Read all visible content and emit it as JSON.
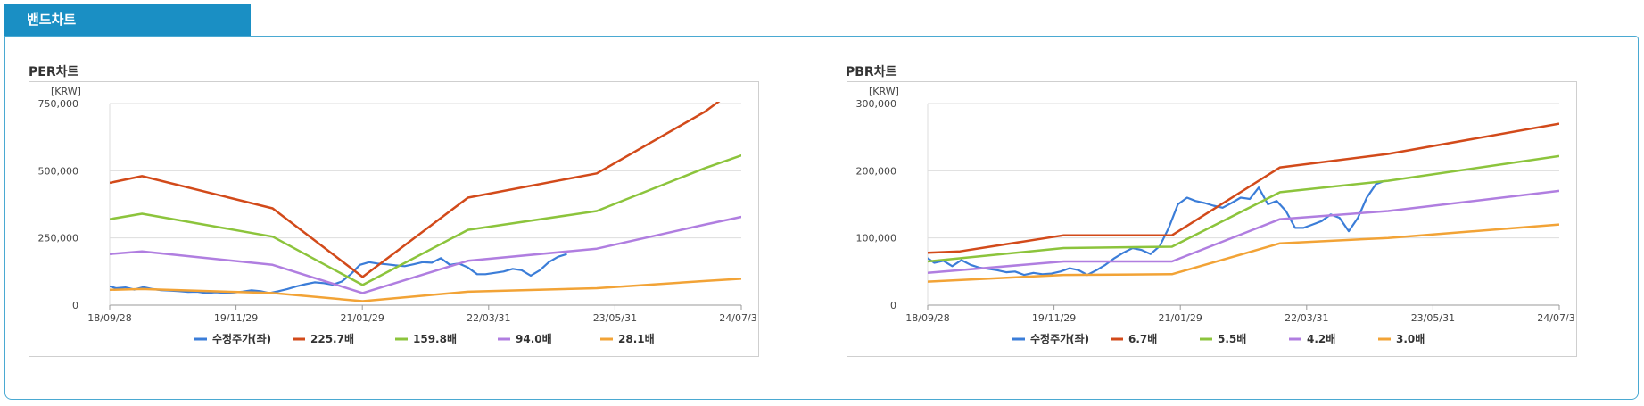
{
  "header": {
    "tab_label": "밴드차트"
  },
  "panels": [
    {
      "title": "PER차트"
    },
    {
      "title": "PBR차트"
    }
  ],
  "colors": {
    "price": "#3b7dd8",
    "band1": "#d24a1a",
    "band2": "#8cc43c",
    "band3": "#b07ee0",
    "band4": "#f2a336",
    "grid": "#dddddd",
    "axis": "#999999",
    "accent": "#1a8fc4"
  },
  "chart_data": [
    {
      "type": "line",
      "title": "PER차트",
      "unit_label": "[KRW]",
      "x_ticks": [
        "18/09/28",
        "19/11/29",
        "21/01/29",
        "22/03/31",
        "23/05/31",
        "24/07/31"
      ],
      "x_range": [
        "2018-09-28",
        "2024-07-31"
      ],
      "y_ticks": [
        "0",
        "250,000",
        "500,000",
        "750,000"
      ],
      "ylim": [
        0,
        750000
      ],
      "legend_position": "bottom",
      "series": [
        {
          "name": "수정주가(좌)",
          "color_key": "price",
          "points": [
            [
              "2018-09-28",
              70000
            ],
            [
              "2018-10-20",
              63000
            ],
            [
              "2018-11-20",
              66000
            ],
            [
              "2018-12-20",
              58000
            ],
            [
              "2019-01-20",
              67000
            ],
            [
              "2019-02-20",
              60000
            ],
            [
              "2019-03-20",
              56000
            ],
            [
              "2019-04-20",
              54000
            ],
            [
              "2019-05-20",
              52000
            ],
            [
              "2019-06-20",
              49000
            ],
            [
              "2019-07-20",
              50000
            ],
            [
              "2019-08-20",
              45000
            ],
            [
              "2019-09-20",
              48000
            ],
            [
              "2019-10-20",
              46000
            ],
            [
              "2019-11-20",
              47000
            ],
            [
              "2019-12-20",
              50000
            ],
            [
              "2020-01-20",
              55000
            ],
            [
              "2020-02-20",
              52000
            ],
            [
              "2020-03-20",
              45000
            ],
            [
              "2020-04-20",
              52000
            ],
            [
              "2020-05-20",
              60000
            ],
            [
              "2020-06-20",
              70000
            ],
            [
              "2020-07-20",
              78000
            ],
            [
              "2020-08-20",
              85000
            ],
            [
              "2020-09-20",
              82000
            ],
            [
              "2020-10-20",
              76000
            ],
            [
              "2020-11-20",
              88000
            ],
            [
              "2020-12-20",
              115000
            ],
            [
              "2021-01-20",
              150000
            ],
            [
              "2021-02-20",
              160000
            ],
            [
              "2021-03-20",
              155000
            ],
            [
              "2021-04-20",
              152000
            ],
            [
              "2021-05-20",
              148000
            ],
            [
              "2021-06-20",
              145000
            ],
            [
              "2021-07-20",
              152000
            ],
            [
              "2021-08-20",
              160000
            ],
            [
              "2021-09-20",
              158000
            ],
            [
              "2021-10-20",
              175000
            ],
            [
              "2021-11-20",
              150000
            ],
            [
              "2021-12-20",
              155000
            ],
            [
              "2022-01-20",
              140000
            ],
            [
              "2022-02-20",
              115000
            ],
            [
              "2022-03-20",
              115000
            ],
            [
              "2022-04-20",
              120000
            ],
            [
              "2022-05-20",
              125000
            ],
            [
              "2022-06-20",
              135000
            ],
            [
              "2022-07-20",
              130000
            ],
            [
              "2022-08-20",
              110000
            ],
            [
              "2022-09-20",
              130000
            ],
            [
              "2022-10-20",
              160000
            ],
            [
              "2022-11-20",
              180000
            ],
            [
              "2022-12-20",
              190000
            ]
          ]
        },
        {
          "name": "225.7배",
          "color_key": "band1",
          "points": [
            [
              "2018-09-28",
              455000
            ],
            [
              "2019-01-15",
              480000
            ],
            [
              "2020-03-31",
              360000
            ],
            [
              "2021-01-29",
              105000
            ],
            [
              "2022-01-20",
              400000
            ],
            [
              "2023-03-31",
              490000
            ],
            [
              "2024-03-31",
              720000
            ],
            [
              "2024-07-31",
              820000
            ]
          ]
        },
        {
          "name": "159.8배",
          "color_key": "band2",
          "points": [
            [
              "2018-09-28",
              320000
            ],
            [
              "2019-01-15",
              340000
            ],
            [
              "2020-03-31",
              255000
            ],
            [
              "2021-01-29",
              75000
            ],
            [
              "2022-01-20",
              280000
            ],
            [
              "2023-03-31",
              350000
            ],
            [
              "2024-03-31",
              510000
            ],
            [
              "2025-03-31",
              650000
            ]
          ]
        },
        {
          "name": "94.0배",
          "color_key": "band3",
          "points": [
            [
              "2018-09-28",
              190000
            ],
            [
              "2019-01-15",
              200000
            ],
            [
              "2020-03-31",
              150000
            ],
            [
              "2021-01-29",
              45000
            ],
            [
              "2022-01-20",
              165000
            ],
            [
              "2023-03-31",
              210000
            ],
            [
              "2024-03-31",
              300000
            ],
            [
              "2025-03-31",
              385000
            ]
          ]
        },
        {
          "name": "28.1배",
          "color_key": "band4",
          "points": [
            [
              "2018-09-28",
              57000
            ],
            [
              "2019-01-15",
              60000
            ],
            [
              "2020-03-31",
              45000
            ],
            [
              "2021-01-29",
              15000
            ],
            [
              "2022-01-20",
              50000
            ],
            [
              "2023-03-31",
              63000
            ],
            [
              "2024-03-31",
              90000
            ],
            [
              "2025-03-31",
              115000
            ]
          ]
        }
      ]
    },
    {
      "type": "line",
      "title": "PBR차트",
      "unit_label": "[KRW]",
      "x_ticks": [
        "18/09/28",
        "19/11/29",
        "21/01/29",
        "22/03/31",
        "23/05/31",
        "24/07/31"
      ],
      "x_range": [
        "2018-09-28",
        "2024-07-31"
      ],
      "y_ticks": [
        "0",
        "100,000",
        "200,000",
        "300,000"
      ],
      "ylim": [
        0,
        300000
      ],
      "legend_position": "bottom",
      "series": [
        {
          "name": "수정주가(좌)",
          "color_key": "price",
          "points": [
            [
              "2018-09-28",
              70000
            ],
            [
              "2018-10-20",
              63000
            ],
            [
              "2018-11-20",
              66000
            ],
            [
              "2018-12-20",
              58000
            ],
            [
              "2019-01-20",
              67000
            ],
            [
              "2019-02-20",
              60000
            ],
            [
              "2019-03-20",
              56000
            ],
            [
              "2019-04-20",
              54000
            ],
            [
              "2019-05-20",
              52000
            ],
            [
              "2019-06-20",
              49000
            ],
            [
              "2019-07-20",
              50000
            ],
            [
              "2019-08-20",
              45000
            ],
            [
              "2019-09-20",
              48000
            ],
            [
              "2019-10-20",
              46000
            ],
            [
              "2019-11-20",
              47000
            ],
            [
              "2019-12-20",
              50000
            ],
            [
              "2020-01-20",
              55000
            ],
            [
              "2020-02-20",
              52000
            ],
            [
              "2020-03-20",
              45000
            ],
            [
              "2020-04-20",
              52000
            ],
            [
              "2020-05-20",
              60000
            ],
            [
              "2020-06-20",
              70000
            ],
            [
              "2020-07-20",
              78000
            ],
            [
              "2020-08-20",
              85000
            ],
            [
              "2020-09-20",
              82000
            ],
            [
              "2020-10-20",
              76000
            ],
            [
              "2020-11-20",
              88000
            ],
            [
              "2020-12-20",
              115000
            ],
            [
              "2021-01-20",
              150000
            ],
            [
              "2021-02-20",
              160000
            ],
            [
              "2021-03-20",
              155000
            ],
            [
              "2021-04-20",
              152000
            ],
            [
              "2021-05-20",
              148000
            ],
            [
              "2021-06-20",
              145000
            ],
            [
              "2021-07-20",
              152000
            ],
            [
              "2021-08-20",
              160000
            ],
            [
              "2021-09-20",
              158000
            ],
            [
              "2021-10-20",
              175000
            ],
            [
              "2021-11-20",
              150000
            ],
            [
              "2021-12-20",
              155000
            ],
            [
              "2022-01-20",
              140000
            ],
            [
              "2022-02-20",
              115000
            ],
            [
              "2022-03-20",
              115000
            ],
            [
              "2022-04-20",
              120000
            ],
            [
              "2022-05-20",
              125000
            ],
            [
              "2022-06-20",
              135000
            ],
            [
              "2022-07-20",
              130000
            ],
            [
              "2022-08-20",
              110000
            ],
            [
              "2022-09-20",
              130000
            ],
            [
              "2022-10-20",
              160000
            ],
            [
              "2022-11-20",
              180000
            ],
            [
              "2022-12-20",
              185000
            ]
          ]
        },
        {
          "name": "6.7배",
          "color_key": "band1",
          "points": [
            [
              "2018-09-28",
              78000
            ],
            [
              "2019-01-15",
              80000
            ],
            [
              "2019-12-31",
              104000
            ],
            [
              "2020-12-31",
              104000
            ],
            [
              "2021-12-31",
              205000
            ],
            [
              "2022-12-31",
              225000
            ],
            [
              "2024-07-31",
              270000
            ]
          ]
        },
        {
          "name": "5.5배",
          "color_key": "band2",
          "points": [
            [
              "2018-09-28",
              65000
            ],
            [
              "2019-12-31",
              85000
            ],
            [
              "2020-12-31",
              87000
            ],
            [
              "2021-12-31",
              168000
            ],
            [
              "2022-12-31",
              185000
            ],
            [
              "2024-07-31",
              222000
            ]
          ]
        },
        {
          "name": "4.2배",
          "color_key": "band3",
          "points": [
            [
              "2018-09-28",
              48000
            ],
            [
              "2019-12-31",
              65000
            ],
            [
              "2020-12-31",
              65000
            ],
            [
              "2021-12-31",
              128000
            ],
            [
              "2022-12-31",
              140000
            ],
            [
              "2024-07-31",
              170000
            ]
          ]
        },
        {
          "name": "3.0배",
          "color_key": "band4",
          "points": [
            [
              "2018-09-28",
              35000
            ],
            [
              "2019-12-31",
              45000
            ],
            [
              "2020-12-31",
              46000
            ],
            [
              "2021-12-31",
              92000
            ],
            [
              "2022-12-31",
              100000
            ],
            [
              "2024-07-31",
              120000
            ]
          ]
        }
      ]
    }
  ]
}
